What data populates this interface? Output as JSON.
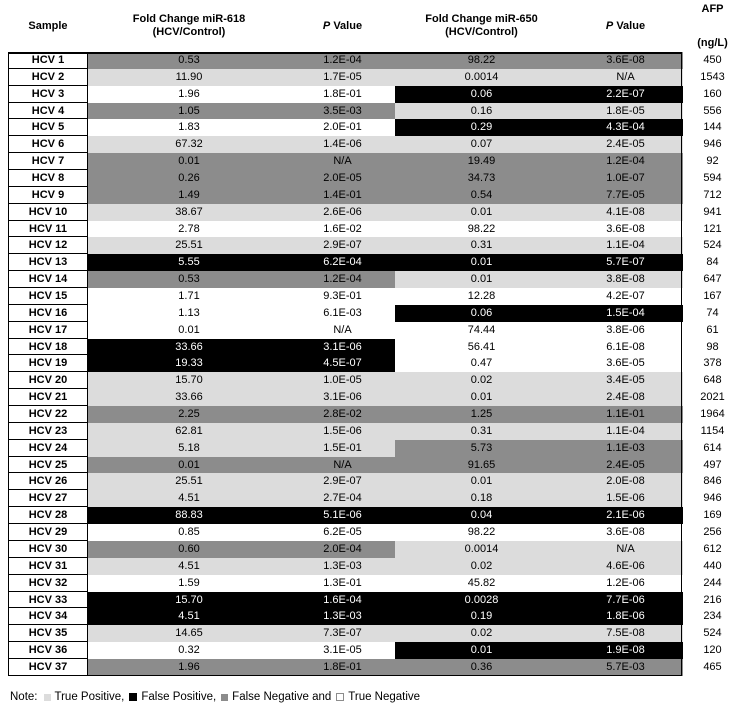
{
  "colors": {
    "true_positive": "#dcdcdc",
    "false_positive": "#000000",
    "false_negative": "#8c8c8c",
    "true_negative": "#ffffff"
  },
  "header": {
    "sample": "Sample",
    "fc618": "Fold Change miR-618\n(HCV/Control)",
    "p_italic": "P",
    "value_word": " Value",
    "fc650": "Fold Change miR-650\n(HCV/Control)",
    "afp": "AFP",
    "afp_unit": "(ng/L)"
  },
  "legend": {
    "note_label": "Note:",
    "items": [
      {
        "key": "tp",
        "label": "True Positive,"
      },
      {
        "key": "fp",
        "label": "False Positive,"
      },
      {
        "key": "fn",
        "label": "False Negative and"
      },
      {
        "key": "tn",
        "label": "True Negative"
      }
    ]
  },
  "rows": [
    {
      "sample": "HCV 1",
      "fc618": "0.53",
      "p618": "1.2E-04",
      "c618": "fn",
      "fc650": "98.22",
      "p650": "3.6E-08",
      "c650": "fn",
      "afp": "450"
    },
    {
      "sample": "HCV 2",
      "fc618": "11.90",
      "p618": "1.7E-05",
      "c618": "tp",
      "fc650": "0.0014",
      "p650": "N/A",
      "c650": "tp",
      "afp": "1543"
    },
    {
      "sample": "HCV 3",
      "fc618": "1.96",
      "p618": "1.8E-01",
      "c618": "tn",
      "fc650": "0.06",
      "p650": "2.2E-07",
      "c650": "fp",
      "afp": "160"
    },
    {
      "sample": "HCV 4",
      "fc618": "1.05",
      "p618": "3.5E-03",
      "c618": "fn",
      "fc650": "0.16",
      "p650": "1.8E-05",
      "c650": "tp",
      "afp": "556"
    },
    {
      "sample": "HCV 5",
      "fc618": "1.83",
      "p618": "2.0E-01",
      "c618": "tn",
      "fc650": "0.29",
      "p650": "4.3E-04",
      "c650": "fp",
      "afp": "144"
    },
    {
      "sample": "HCV 6",
      "fc618": "67.32",
      "p618": "1.4E-06",
      "c618": "tp",
      "fc650": "0.07",
      "p650": "2.4E-05",
      "c650": "tp",
      "afp": "946"
    },
    {
      "sample": "HCV 7",
      "fc618": "0.01",
      "p618": "N/A",
      "c618": "fn",
      "fc650": "19.49",
      "p650": "1.2E-04",
      "c650": "fn",
      "afp": "92"
    },
    {
      "sample": "HCV 8",
      "fc618": "0.26",
      "p618": "2.0E-05",
      "c618": "fn",
      "fc650": "34.73",
      "p650": "1.0E-07",
      "c650": "fn",
      "afp": "594"
    },
    {
      "sample": "HCV 9",
      "fc618": "1.49",
      "p618": "1.4E-01",
      "c618": "fn",
      "fc650": "0.54",
      "p650": "7.7E-05",
      "c650": "fn",
      "afp": "712"
    },
    {
      "sample": "HCV 10",
      "fc618": "38.67",
      "p618": "2.6E-06",
      "c618": "tp",
      "fc650": "0.01",
      "p650": "4.1E-08",
      "c650": "tp",
      "afp": "941"
    },
    {
      "sample": "HCV 11",
      "fc618": "2.78",
      "p618": "1.6E-02",
      "c618": "tn",
      "fc650": "98.22",
      "p650": "3.6E-08",
      "c650": "tn",
      "afp": "121"
    },
    {
      "sample": "HCV 12",
      "fc618": "25.51",
      "p618": "2.9E-07",
      "c618": "tp",
      "fc650": "0.31",
      "p650": "1.1E-04",
      "c650": "tp",
      "afp": "524"
    },
    {
      "sample": "HCV 13",
      "fc618": "5.55",
      "p618": "6.2E-04",
      "c618": "fp",
      "fc650": "0.01",
      "p650": "5.7E-07",
      "c650": "fp",
      "afp": "84"
    },
    {
      "sample": "HCV 14",
      "fc618": "0.53",
      "p618": "1.2E-04",
      "c618": "fn",
      "fc650": "0.01",
      "p650": "3.8E-08",
      "c650": "tp",
      "afp": "647"
    },
    {
      "sample": "HCV 15",
      "fc618": "1.71",
      "p618": "9.3E-01",
      "c618": "tn",
      "fc650": "12.28",
      "p650": "4.2E-07",
      "c650": "tn",
      "afp": "167"
    },
    {
      "sample": "HCV 16",
      "fc618": "1.13",
      "p618": "6.1E-03",
      "c618": "tn",
      "fc650": "0.06",
      "p650": "1.5E-04",
      "c650": "fp",
      "afp": "74"
    },
    {
      "sample": "HCV 17",
      "fc618": "0.01",
      "p618": "N/A",
      "c618": "tn",
      "fc650": "74.44",
      "p650": "3.8E-06",
      "c650": "tn",
      "afp": "61"
    },
    {
      "sample": "HCV 18",
      "fc618": "33.66",
      "p618": "3.1E-06",
      "c618": "fp",
      "fc650": "56.41",
      "p650": "6.1E-08",
      "c650": "tn",
      "afp": "98"
    },
    {
      "sample": "HCV 19",
      "fc618": "19.33",
      "p618": "4.5E-07",
      "c618": "fp",
      "fc650": "0.47",
      "p650": "3.6E-05",
      "c650": "tn",
      "afp": "378"
    },
    {
      "sample": "HCV 20",
      "fc618": "15.70",
      "p618": "1.0E-05",
      "c618": "tp",
      "fc650": "0.02",
      "p650": "3.4E-05",
      "c650": "tp",
      "afp": "648"
    },
    {
      "sample": "HCV 21",
      "fc618": "33.66",
      "p618": "3.1E-06",
      "c618": "tp",
      "fc650": "0.01",
      "p650": "2.4E-08",
      "c650": "tp",
      "afp": "2021"
    },
    {
      "sample": "HCV 22",
      "fc618": "2.25",
      "p618": "2.8E-02",
      "c618": "fn",
      "fc650": "1.25",
      "p650": "1.1E-01",
      "c650": "fn",
      "afp": "1964"
    },
    {
      "sample": "HCV 23",
      "fc618": "62.81",
      "p618": "1.5E-06",
      "c618": "tp",
      "fc650": "0.31",
      "p650": "1.1E-04",
      "c650": "tp",
      "afp": "1154"
    },
    {
      "sample": "HCV 24",
      "fc618": "5.18",
      "p618": "1.5E-01",
      "c618": "tp",
      "fc650": "5.73",
      "p650": "1.1E-03",
      "c650": "fn",
      "afp": "614"
    },
    {
      "sample": "HCV 25",
      "fc618": "0.01",
      "p618": "N/A",
      "c618": "fn",
      "fc650": "91.65",
      "p650": "2.4E-05",
      "c650": "fn",
      "afp": "497"
    },
    {
      "sample": "HCV 26",
      "fc618": "25.51",
      "p618": "2.9E-07",
      "c618": "tp",
      "fc650": "0.01",
      "p650": "2.0E-08",
      "c650": "tp",
      "afp": "846"
    },
    {
      "sample": "HCV 27",
      "fc618": "4.51",
      "p618": "2.7E-04",
      "c618": "tp",
      "fc650": "0.18",
      "p650": "1.5E-06",
      "c650": "tp",
      "afp": "946"
    },
    {
      "sample": "HCV 28",
      "fc618": "88.83",
      "p618": "5.1E-06",
      "c618": "fp",
      "fc650": "0.04",
      "p650": "2.1E-06",
      "c650": "fp",
      "afp": "169"
    },
    {
      "sample": "HCV 29",
      "fc618": "0.85",
      "p618": "6.2E-05",
      "c618": "tn",
      "fc650": "98.22",
      "p650": "3.6E-08",
      "c650": "tn",
      "afp": "256"
    },
    {
      "sample": "HCV 30",
      "fc618": "0.60",
      "p618": "2.0E-04",
      "c618": "fn",
      "fc650": "0.0014",
      "p650": "N/A",
      "c650": "tp",
      "afp": "612"
    },
    {
      "sample": "HCV 31",
      "fc618": "4.51",
      "p618": "1.3E-03",
      "c618": "tp",
      "fc650": "0.02",
      "p650": "4.6E-06",
      "c650": "tp",
      "afp": "440"
    },
    {
      "sample": "HCV 32",
      "fc618": "1.59",
      "p618": "1.3E-01",
      "c618": "tn",
      "fc650": "45.82",
      "p650": "1.2E-06",
      "c650": "tn",
      "afp": "244"
    },
    {
      "sample": "HCV 33",
      "fc618": "15.70",
      "p618": "1.6E-04",
      "c618": "fp",
      "fc650": "0.0028",
      "p650": "7.7E-06",
      "c650": "fp",
      "afp": "216"
    },
    {
      "sample": "HCV 34",
      "fc618": "4.51",
      "p618": "1.3E-03",
      "c618": "fp",
      "fc650": "0.19",
      "p650": "1.8E-06",
      "c650": "fp",
      "afp": "234"
    },
    {
      "sample": "HCV 35",
      "fc618": "14.65",
      "p618": "7.3E-07",
      "c618": "tp",
      "fc650": "0.02",
      "p650": "7.5E-08",
      "c650": "tp",
      "afp": "524"
    },
    {
      "sample": "HCV 36",
      "fc618": "0.32",
      "p618": "3.1E-05",
      "c618": "tn",
      "fc650": "0.01",
      "p650": "1.9E-08",
      "c650": "fp",
      "afp": "120"
    },
    {
      "sample": "HCV 37",
      "fc618": "1.96",
      "p618": "1.8E-01",
      "c618": "fn",
      "fc650": "0.36",
      "p650": "5.7E-03",
      "c650": "fn",
      "afp": "465"
    }
  ]
}
